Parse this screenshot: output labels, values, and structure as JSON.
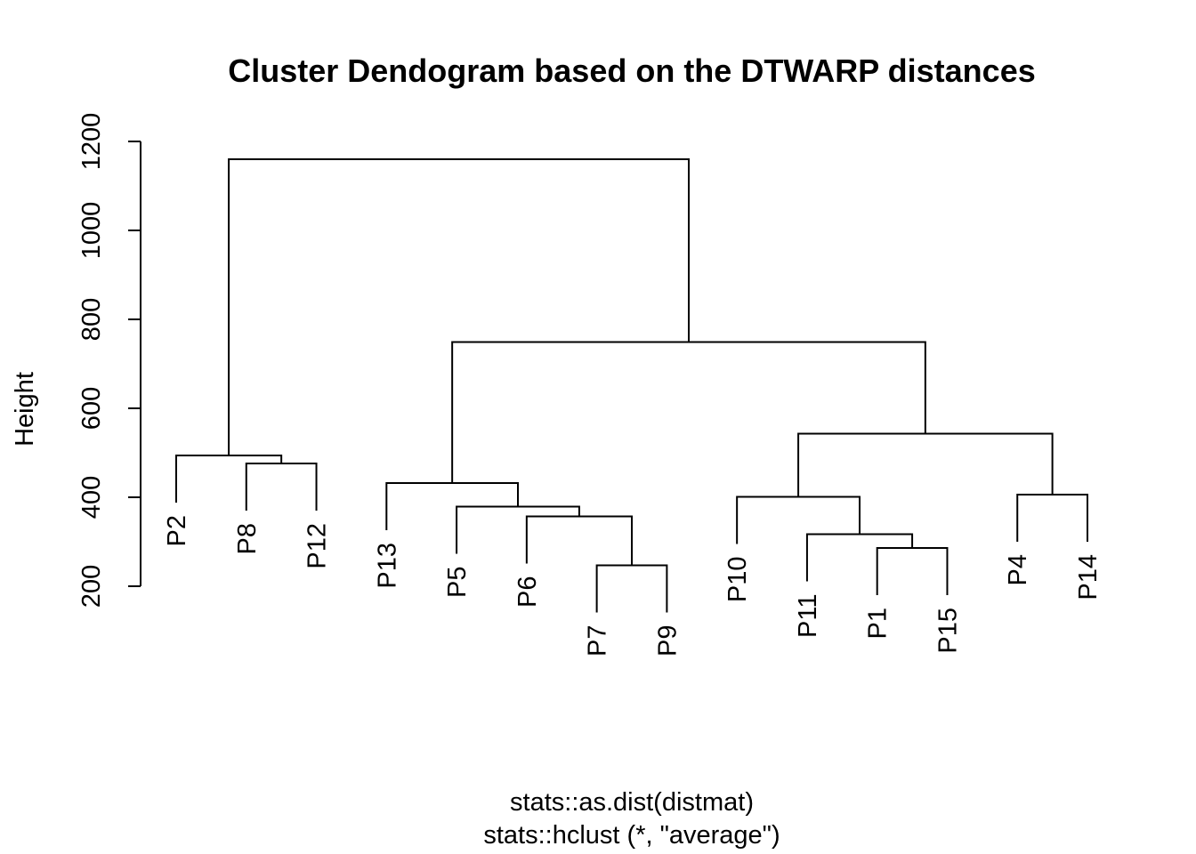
{
  "chart_data": {
    "type": "dendrogram",
    "title": "Cluster Dendogram based on the DTWARP distances",
    "ylabel": "Height",
    "sub_lines": [
      "stats::as.dist(distmat)",
      "stats::hclust (*, \"average\")"
    ],
    "yticks": [
      200,
      400,
      600,
      800,
      1000,
      1200
    ],
    "ylim": [
      200,
      1200
    ],
    "leaves": [
      "P2",
      "P8",
      "P12",
      "P13",
      "P5",
      "P6",
      "P7",
      "P9",
      "P10",
      "P11",
      "P1",
      "P15",
      "P4",
      "P14"
    ],
    "merges": [
      {
        "a": "P7",
        "b": "P9",
        "height": 247
      },
      {
        "a": "P1",
        "b": "P15",
        "height": 286
      },
      {
        "a": "P11",
        "b": "#2",
        "height": 317
      },
      {
        "a": "P6",
        "b": "#1",
        "height": 357
      },
      {
        "a": "P5",
        "b": "#4",
        "height": 379
      },
      {
        "a": "P10",
        "b": "#3",
        "height": 401
      },
      {
        "a": "P4",
        "b": "P14",
        "height": 406
      },
      {
        "a": "P13",
        "b": "#5",
        "height": 432
      },
      {
        "a": "P8",
        "b": "P12",
        "height": 476
      },
      {
        "a": "P2",
        "b": "#9",
        "height": 494
      },
      {
        "a": "#6",
        "b": "#7",
        "height": 543
      },
      {
        "a": "#8",
        "b": "#11",
        "height": 749
      },
      {
        "a": "#10",
        "b": "#12",
        "height": 1160
      }
    ]
  }
}
